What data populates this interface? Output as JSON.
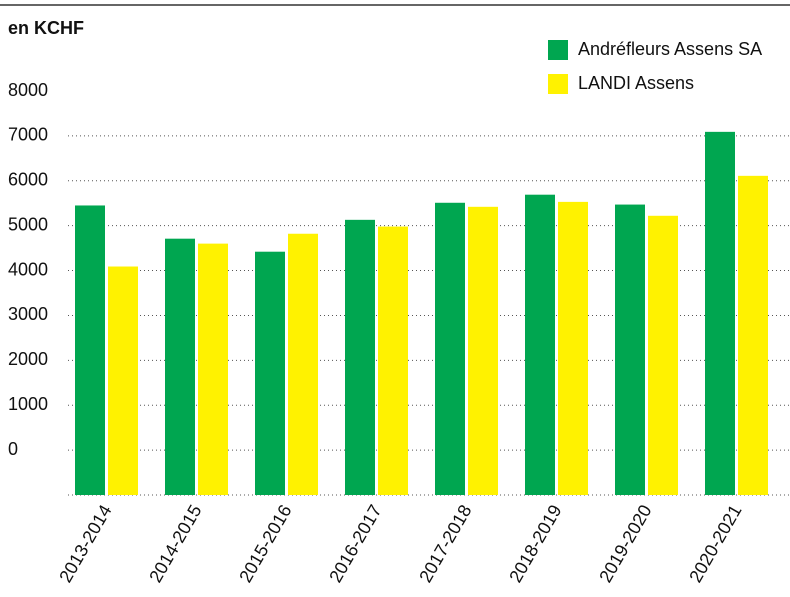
{
  "chart_data": {
    "type": "bar",
    "title": "en KCHF",
    "categories": [
      "2013-2014",
      "2014-2015",
      "2015-2016",
      "2016-2017",
      "2017-2018",
      "2018-2019",
      "2019-2020",
      "2020-2021"
    ],
    "series": [
      {
        "name": "Andréfleurs Assens SA",
        "color": "#00a650",
        "values": [
          5450,
          4710,
          4420,
          5130,
          5510,
          5690,
          5470,
          7090
        ]
      },
      {
        "name": "LANDI Assens",
        "color": "#fff200",
        "values": [
          4090,
          4600,
          4820,
          4980,
          5420,
          5530,
          5220,
          6110
        ]
      }
    ],
    "ylim": [
      -1000,
      8000
    ],
    "yticks": [
      0,
      1000,
      2000,
      3000,
      4000,
      5000,
      6000,
      7000,
      8000
    ],
    "grid": true,
    "legend": "top-right"
  }
}
